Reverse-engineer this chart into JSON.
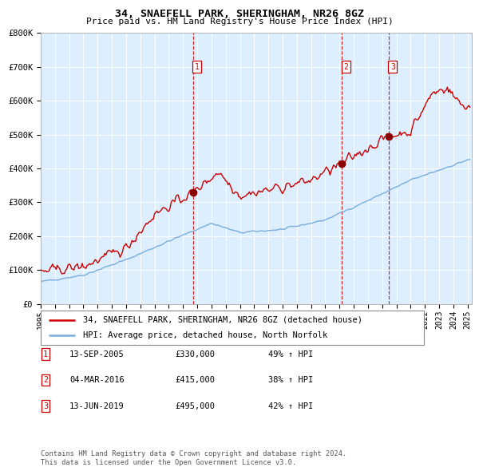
{
  "title": "34, SNAEFELL PARK, SHERINGHAM, NR26 8GZ",
  "subtitle": "Price paid vs. HM Land Registry's House Price Index (HPI)",
  "legend_line1": "34, SNAEFELL PARK, SHERINGHAM, NR26 8GZ (detached house)",
  "legend_line2": "HPI: Average price, detached house, North Norfolk",
  "footer1": "Contains HM Land Registry data © Crown copyright and database right 2024.",
  "footer2": "This data is licensed under the Open Government Licence v3.0.",
  "sales": [
    {
      "num": 1,
      "date": "13-SEP-2005",
      "price": 330000,
      "pct": "49%",
      "dir": "↑"
    },
    {
      "num": 2,
      "date": "04-MAR-2016",
      "price": 415000,
      "pct": "38%",
      "dir": "↑"
    },
    {
      "num": 3,
      "date": "13-JUN-2019",
      "price": 495000,
      "pct": "42%",
      "dir": "↑"
    }
  ],
  "sale_dates_decimal": [
    2005.7,
    2016.17,
    2019.45
  ],
  "sale_prices": [
    330000,
    415000,
    495000
  ],
  "hpi_color": "#7aaddd",
  "price_color": "#cc0000",
  "dot_color": "#8b0000",
  "background_color": "#ddeeff",
  "ylim": [
    0,
    800000
  ],
  "yticks": [
    0,
    100000,
    200000,
    300000,
    400000,
    500000,
    600000,
    700000,
    800000
  ],
  "xlim_start": 1995.0,
  "xlim_end": 2025.3
}
